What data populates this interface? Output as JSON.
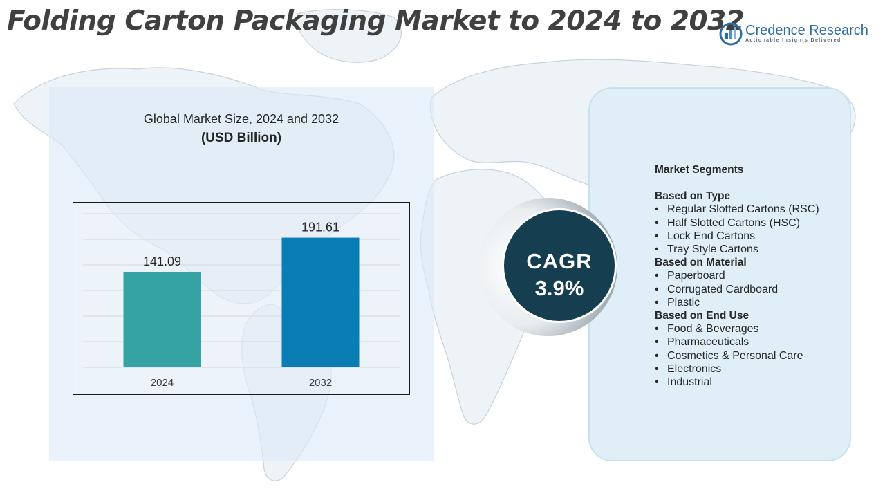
{
  "title": "Folding Carton Packaging Market to 2024 to 2032",
  "logo": {
    "name": "Credence Research",
    "tagline": "Actionable Insights Delivered"
  },
  "colors": {
    "bar_2024": "#35a3a3",
    "bar_2032": "#0a7db4",
    "cagr_circle": "#153f50",
    "panel": "#dfeef7"
  },
  "chart_data": {
    "type": "bar",
    "title": "Global Market Size, 2024 and 2032",
    "unit": "(USD Billion)",
    "categories": [
      "2024",
      "2032"
    ],
    "values": [
      141.09,
      191.61
    ],
    "value_labels": [
      "141.09",
      "191.61"
    ],
    "bar_colors": [
      "#35a3a3",
      "#0a7db4"
    ],
    "ylim": [
      0,
      230
    ],
    "grid": true,
    "legend": "none"
  },
  "cagr": {
    "label": "CAGR",
    "value": "3.9%"
  },
  "segments": {
    "heading": "Market Segments",
    "groups": [
      {
        "title": "Based on Type",
        "items": [
          "Regular Slotted Cartons (RSC)",
          "Half Slotted Cartons (HSC)",
          "Lock End Cartons",
          "Tray Style Cartons"
        ]
      },
      {
        "title": "Based on Material",
        "items": [
          "Paperboard",
          "Corrugated Cardboard",
          "Plastic"
        ]
      },
      {
        "title": "Based on End Use",
        "items": [
          "Food & Beverages",
          "Pharmaceuticals",
          "Cosmetics & Personal Care",
          "Electronics",
          "Industrial"
        ]
      }
    ]
  }
}
